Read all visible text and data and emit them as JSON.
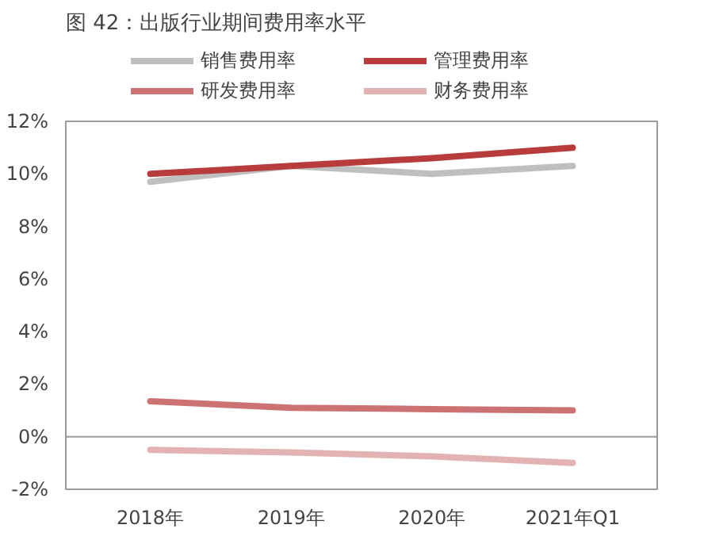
{
  "chart_data": {
    "type": "line",
    "title": "图 42：出版行业期间费用率水平",
    "categories": [
      "2018年",
      "2019年",
      "2020年",
      "2021年Q1"
    ],
    "series": [
      {
        "name": "销售费用率",
        "color": "#bfbfbf",
        "values": [
          9.7,
          10.3,
          10.0,
          10.3
        ]
      },
      {
        "name": "管理费用率",
        "color": "#b83c3c",
        "values": [
          10.0,
          10.3,
          10.6,
          11.0
        ]
      },
      {
        "name": "研发费用率",
        "color": "#cc7272",
        "values": [
          1.35,
          1.1,
          1.05,
          1.0
        ]
      },
      {
        "name": "财务费用率",
        "color": "#e3b3b3",
        "values": [
          -0.5,
          -0.6,
          -0.75,
          -1.0
        ]
      }
    ],
    "ylim": [
      -2,
      12
    ],
    "yticks": [
      {
        "value": -2,
        "label": "-2%"
      },
      {
        "value": 0,
        "label": "0%"
      },
      {
        "value": 2,
        "label": "2%"
      },
      {
        "value": 4,
        "label": "4%"
      },
      {
        "value": 6,
        "label": "6%"
      },
      {
        "value": 8,
        "label": "8%"
      },
      {
        "value": 10,
        "label": "10%"
      },
      {
        "value": 12,
        "label": "12%"
      }
    ],
    "ref_lines": [
      {
        "axis": "y",
        "value": 0
      }
    ],
    "grid": false,
    "legend": "top",
    "marker": "none",
    "line_style": "solid"
  }
}
